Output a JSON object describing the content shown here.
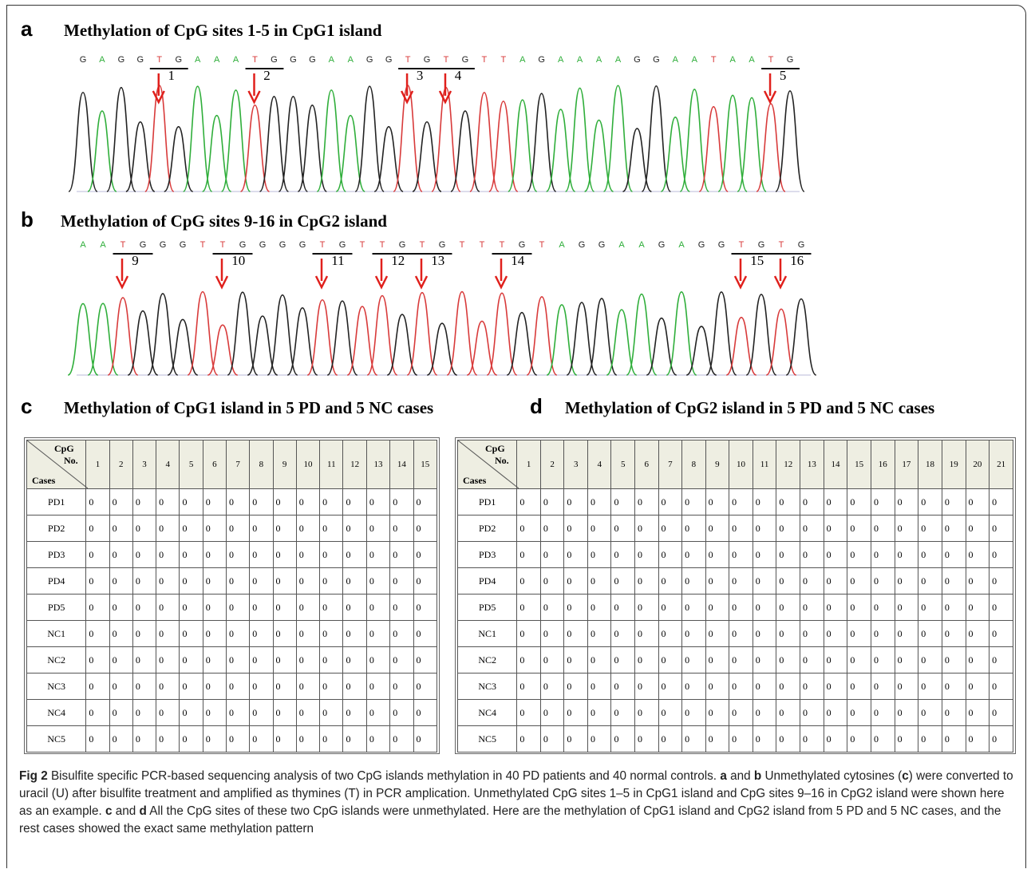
{
  "panel_a": {
    "letter": "a",
    "title": "Methylation of CpG sites 1-5 in CpG1 island",
    "sequence": "GAGGTGAAATGGGAAGGTGTGTTAGAAAAGGAATAATG",
    "sites": [
      "1",
      "2",
      "3",
      "4",
      "5"
    ]
  },
  "panel_b": {
    "letter": "b",
    "title": "Methylation  of CpG sites 9-16 in CpG2 island",
    "sequence": "AATGGGTTGGGGTGTTGTGTTTGTAGGAAGAGGTGTG",
    "sites": [
      "9",
      "10",
      "11",
      "12",
      "13",
      "14",
      "15",
      "16"
    ]
  },
  "panel_c": {
    "letter": "c",
    "title": "Methylation of CpG1 island in  5 PD and 5 NC cases",
    "table": {
      "corner_top": "CpG",
      "corner_mid": "No.",
      "corner_bottom": "Cases",
      "columns": [
        1,
        2,
        3,
        4,
        5,
        6,
        7,
        8,
        9,
        10,
        11,
        12,
        13,
        14,
        15
      ],
      "rows": [
        {
          "case": "PD1",
          "values": [
            0,
            0,
            0,
            0,
            0,
            0,
            0,
            0,
            0,
            0,
            0,
            0,
            0,
            0,
            0
          ]
        },
        {
          "case": "PD2",
          "values": [
            0,
            0,
            0,
            0,
            0,
            0,
            0,
            0,
            0,
            0,
            0,
            0,
            0,
            0,
            0
          ]
        },
        {
          "case": "PD3",
          "values": [
            0,
            0,
            0,
            0,
            0,
            0,
            0,
            0,
            0,
            0,
            0,
            0,
            0,
            0,
            0
          ]
        },
        {
          "case": "PD4",
          "values": [
            0,
            0,
            0,
            0,
            0,
            0,
            0,
            0,
            0,
            0,
            0,
            0,
            0,
            0,
            0
          ]
        },
        {
          "case": "PD5",
          "values": [
            0,
            0,
            0,
            0,
            0,
            0,
            0,
            0,
            0,
            0,
            0,
            0,
            0,
            0,
            0
          ]
        },
        {
          "case": "NC1",
          "values": [
            0,
            0,
            0,
            0,
            0,
            0,
            0,
            0,
            0,
            0,
            0,
            0,
            0,
            0,
            0
          ]
        },
        {
          "case": "NC2",
          "values": [
            0,
            0,
            0,
            0,
            0,
            0,
            0,
            0,
            0,
            0,
            0,
            0,
            0,
            0,
            0
          ]
        },
        {
          "case": "NC3",
          "values": [
            0,
            0,
            0,
            0,
            0,
            0,
            0,
            0,
            0,
            0,
            0,
            0,
            0,
            0,
            0
          ]
        },
        {
          "case": "NC4",
          "values": [
            0,
            0,
            0,
            0,
            0,
            0,
            0,
            0,
            0,
            0,
            0,
            0,
            0,
            0,
            0
          ]
        },
        {
          "case": "NC5",
          "values": [
            0,
            0,
            0,
            0,
            0,
            0,
            0,
            0,
            0,
            0,
            0,
            0,
            0,
            0,
            0
          ]
        }
      ]
    }
  },
  "panel_d": {
    "letter": "d",
    "title": "Methylation of CpG2 island in 5 PD and 5 NC cases",
    "table": {
      "corner_top": "CpG",
      "corner_mid": "No.",
      "corner_bottom": "Cases",
      "columns": [
        1,
        2,
        3,
        4,
        5,
        6,
        7,
        8,
        9,
        10,
        11,
        12,
        13,
        14,
        15,
        16,
        17,
        18,
        19,
        20,
        21
      ],
      "rows": [
        {
          "case": "PD1",
          "values": [
            0,
            0,
            0,
            0,
            0,
            0,
            0,
            0,
            0,
            0,
            0,
            0,
            0,
            0,
            0,
            0,
            0,
            0,
            0,
            0,
            0
          ]
        },
        {
          "case": "PD2",
          "values": [
            0,
            0,
            0,
            0,
            0,
            0,
            0,
            0,
            0,
            0,
            0,
            0,
            0,
            0,
            0,
            0,
            0,
            0,
            0,
            0,
            0
          ]
        },
        {
          "case": "PD3",
          "values": [
            0,
            0,
            0,
            0,
            0,
            0,
            0,
            0,
            0,
            0,
            0,
            0,
            0,
            0,
            0,
            0,
            0,
            0,
            0,
            0,
            0
          ]
        },
        {
          "case": "PD4",
          "values": [
            0,
            0,
            0,
            0,
            0,
            0,
            0,
            0,
            0,
            0,
            0,
            0,
            0,
            0,
            0,
            0,
            0,
            0,
            0,
            0,
            0
          ]
        },
        {
          "case": "PD5",
          "values": [
            0,
            0,
            0,
            0,
            0,
            0,
            0,
            0,
            0,
            0,
            0,
            0,
            0,
            0,
            0,
            0,
            0,
            0,
            0,
            0,
            0
          ]
        },
        {
          "case": "NC1",
          "values": [
            0,
            0,
            0,
            0,
            0,
            0,
            0,
            0,
            0,
            0,
            0,
            0,
            0,
            0,
            0,
            0,
            0,
            0,
            0,
            0,
            0
          ]
        },
        {
          "case": "NC2",
          "values": [
            0,
            0,
            0,
            0,
            0,
            0,
            0,
            0,
            0,
            0,
            0,
            0,
            0,
            0,
            0,
            0,
            0,
            0,
            0,
            0,
            0
          ]
        },
        {
          "case": "NC3",
          "values": [
            0,
            0,
            0,
            0,
            0,
            0,
            0,
            0,
            0,
            0,
            0,
            0,
            0,
            0,
            0,
            0,
            0,
            0,
            0,
            0,
            0
          ]
        },
        {
          "case": "NC4",
          "values": [
            0,
            0,
            0,
            0,
            0,
            0,
            0,
            0,
            0,
            0,
            0,
            0,
            0,
            0,
            0,
            0,
            0,
            0,
            0,
            0,
            0
          ]
        },
        {
          "case": "NC5",
          "values": [
            0,
            0,
            0,
            0,
            0,
            0,
            0,
            0,
            0,
            0,
            0,
            0,
            0,
            0,
            0,
            0,
            0,
            0,
            0,
            0,
            0
          ]
        }
      ]
    }
  },
  "caption": {
    "label": "Fig 2",
    "parts": [
      " Bisulfite specific PCR-based sequencing analysis of two CpG islands methylation in 40 PD patients and 40 normal controls. ",
      "a",
      " and ",
      "b",
      " Unmethylated cytosines (",
      "c",
      ") were converted to uracil (U) after bisulfite treatment and amplified as thymines (T) in PCR amplication. Unmethylated CpG sites 1–5 in CpG1 island and CpG sites 9–16 in CpG2 island were shown here as an example. ",
      "c",
      " and ",
      "d",
      " All the CpG sites of these two CpG islands were unmethylated. Here are the methylation of CpG1 island and CpG2 island from 5 PD and 5 NC cases, and the rest cases showed the exact same methylation pattern"
    ]
  }
}
